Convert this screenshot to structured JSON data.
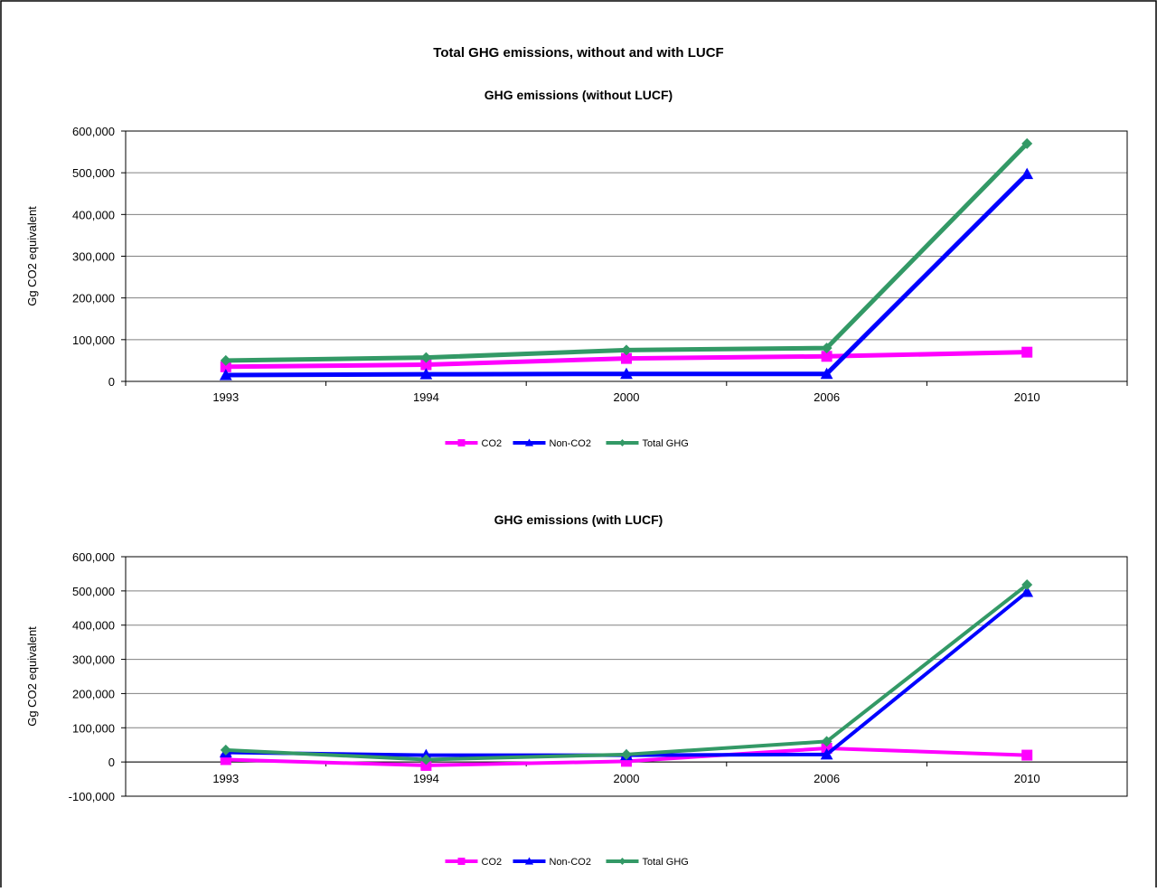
{
  "page": {
    "title": "Total GHG emissions, without and with LUCF"
  },
  "colors": {
    "CO2": "#ff00ff",
    "Non-CO2": "#0000ff",
    "Total GHG": "#339966",
    "grid": "#808080"
  },
  "chart_data": [
    {
      "type": "line",
      "title": "GHG emissions (without LUCF)",
      "xlabel": "",
      "ylabel": "Gg CO2 equivalent",
      "categories": [
        "1993",
        "1994",
        "2000",
        "2006",
        "2010"
      ],
      "ylim": [
        0,
        600000
      ],
      "yticks": [
        0,
        100000,
        200000,
        300000,
        400000,
        500000,
        600000
      ],
      "ytick_labels": [
        "0",
        "100,000",
        "200,000",
        "300,000",
        "400,000",
        "500,000",
        "600,000"
      ],
      "grid": true,
      "legend": "bottom",
      "series": [
        {
          "name": "CO2",
          "marker": "square",
          "values": [
            35000,
            40000,
            55000,
            60000,
            70000
          ]
        },
        {
          "name": "Non-CO2",
          "marker": "triangle",
          "values": [
            15000,
            17000,
            18000,
            18000,
            497000
          ]
        },
        {
          "name": "Total GHG",
          "marker": "diamond",
          "values": [
            50000,
            57000,
            75000,
            80000,
            570000
          ]
        }
      ]
    },
    {
      "type": "line",
      "title": "GHG emissions (with LUCF)",
      "xlabel": "",
      "ylabel": "Gg CO2 equivalent",
      "categories": [
        "1993",
        "1994",
        "2000",
        "2006",
        "2010"
      ],
      "ylim": [
        -100000,
        600000
      ],
      "yticks": [
        -100000,
        0,
        100000,
        200000,
        300000,
        400000,
        500000,
        600000
      ],
      "ytick_labels": [
        "-100,000",
        "0",
        "100,000",
        "200,000",
        "300,000",
        "400,000",
        "500,000",
        "600,000"
      ],
      "grid": true,
      "legend": "bottom",
      "series": [
        {
          "name": "CO2",
          "marker": "none",
          "values": [
            7000,
            -10000,
            2000,
            40000,
            20000
          ]
        },
        {
          "name": "Non-CO2",
          "marker": "triangle",
          "values": [
            28000,
            20000,
            20000,
            22000,
            497000
          ]
        },
        {
          "name": "Total GHG",
          "marker": "diamond",
          "values": [
            35000,
            7000,
            22000,
            60000,
            518000
          ]
        }
      ]
    }
  ]
}
